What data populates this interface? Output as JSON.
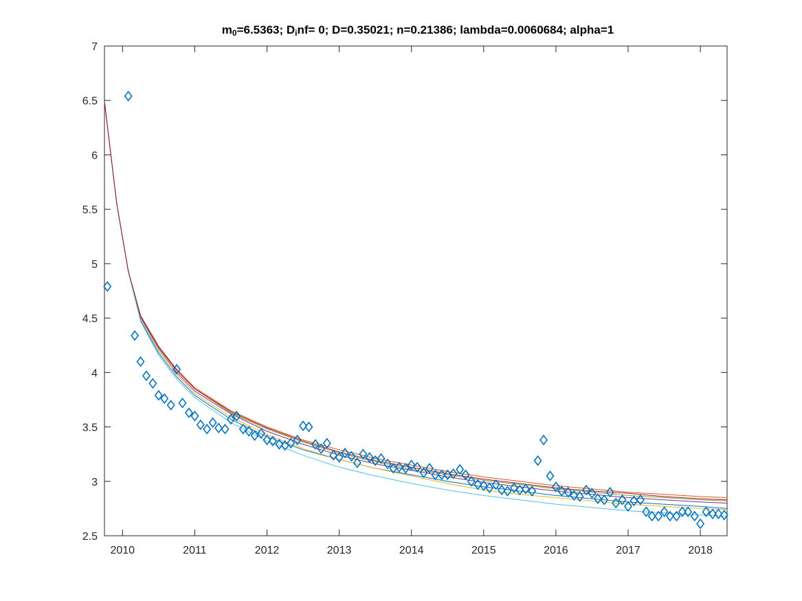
{
  "chart_data": {
    "type": "scatter",
    "title": {
      "parts": [
        {
          "text": "m",
          "sub": false
        },
        {
          "text": "0",
          "sub": true
        },
        {
          "text": "=6.5363; D",
          "sub": false
        },
        {
          "text": "i",
          "sub": true
        },
        {
          "text": "nf= 0; D=0.35021; n=0.21386; lambda=0.0060684; alpha=1",
          "sub": false
        }
      ]
    },
    "xlabel": "",
    "ylabel": "",
    "xlim": [
      2009.75,
      2018.37
    ],
    "ylim": [
      2.5,
      7
    ],
    "grid": false,
    "legend": "none",
    "x_ticks": [
      2010,
      2011,
      2012,
      2013,
      2014,
      2015,
      2016,
      2017,
      2018
    ],
    "x_tick_labels": [
      "2010",
      "2011",
      "2012",
      "2013",
      "2014",
      "2015",
      "2016",
      "2017",
      "2018"
    ],
    "y_ticks": [
      2.5,
      3,
      3.5,
      4,
      4.5,
      5,
      5.5,
      6,
      6.5,
      7
    ],
    "y_tick_labels": [
      "2.5",
      "3",
      "3.5",
      "4",
      "4.5",
      "5",
      "5.5",
      "6",
      "6.5",
      "7"
    ],
    "observed": {
      "marker": "diamond",
      "color": "#0072bd",
      "x": [
        2009.79,
        2010.08,
        2010.17,
        2010.25,
        2010.33,
        2010.42,
        2010.5,
        2010.58,
        2010.67,
        2010.75,
        2010.83,
        2010.92,
        2011.0,
        2011.08,
        2011.17,
        2011.25,
        2011.33,
        2011.42,
        2011.5,
        2011.58,
        2011.67,
        2011.75,
        2011.83,
        2011.92,
        2012.0,
        2012.08,
        2012.17,
        2012.25,
        2012.33,
        2012.42,
        2012.5,
        2012.58,
        2012.67,
        2012.75,
        2012.83,
        2012.92,
        2013.0,
        2013.08,
        2013.17,
        2013.25,
        2013.33,
        2013.42,
        2013.5,
        2013.58,
        2013.67,
        2013.75,
        2013.83,
        2013.92,
        2014.0,
        2014.08,
        2014.17,
        2014.25,
        2014.33,
        2014.42,
        2014.5,
        2014.58,
        2014.67,
        2014.75,
        2014.83,
        2014.92,
        2015.0,
        2015.08,
        2015.17,
        2015.25,
        2015.33,
        2015.42,
        2015.5,
        2015.58,
        2015.67,
        2015.75,
        2015.83,
        2015.92,
        2016.0,
        2016.08,
        2016.17,
        2016.25,
        2016.33,
        2016.42,
        2016.5,
        2016.58,
        2016.67,
        2016.75,
        2016.83,
        2016.92,
        2017.0,
        2017.08,
        2017.17,
        2017.25,
        2017.33,
        2017.42,
        2017.5,
        2017.58,
        2017.67,
        2017.75,
        2017.83,
        2017.92,
        2018.0,
        2018.08,
        2018.17,
        2018.25,
        2018.33
      ],
      "y": [
        4.79,
        6.54,
        4.34,
        4.1,
        3.97,
        3.9,
        3.79,
        3.76,
        3.7,
        4.03,
        3.72,
        3.63,
        3.6,
        3.52,
        3.48,
        3.54,
        3.49,
        3.48,
        3.57,
        3.6,
        3.48,
        3.46,
        3.42,
        3.44,
        3.38,
        3.37,
        3.34,
        3.33,
        3.35,
        3.38,
        3.51,
        3.5,
        3.34,
        3.3,
        3.35,
        3.24,
        3.22,
        3.26,
        3.23,
        3.17,
        3.25,
        3.22,
        3.19,
        3.21,
        3.16,
        3.12,
        3.13,
        3.12,
        3.15,
        3.13,
        3.08,
        3.12,
        3.06,
        3.06,
        3.06,
        3.07,
        3.11,
        3.06,
        3.0,
        2.97,
        2.96,
        2.94,
        2.97,
        2.92,
        2.91,
        2.94,
        2.92,
        2.93,
        2.91,
        3.19,
        3.38,
        3.05,
        2.95,
        2.91,
        2.9,
        2.87,
        2.86,
        2.92,
        2.89,
        2.84,
        2.83,
        2.9,
        2.8,
        2.83,
        2.77,
        2.82,
        2.83,
        2.72,
        2.68,
        2.68,
        2.72,
        2.68,
        2.68,
        2.72,
        2.72,
        2.68,
        2.61,
        2.72,
        2.7,
        2.7,
        2.69
      ]
    },
    "series": [
      {
        "color": "#0072bd",
        "x": [
          2009.75,
          2009.92,
          2010.08,
          2010.25,
          2010.5,
          2010.75,
          2011.0,
          2011.5,
          2012.0,
          2012.5,
          2013.0,
          2013.5,
          2014.0,
          2014.5,
          2015.0,
          2015.5,
          2016.0,
          2016.5,
          2017.0,
          2017.5,
          2018.0,
          2018.37
        ],
        "y": [
          6.49,
          5.55,
          4.93,
          4.48,
          4.18,
          3.96,
          3.79,
          3.57,
          3.41,
          3.29,
          3.2,
          3.12,
          3.06,
          3.0,
          2.95,
          2.91,
          2.87,
          2.84,
          2.81,
          2.79,
          2.77,
          2.75
        ]
      },
      {
        "color": "#d95319",
        "x": [
          2009.75,
          2009.92,
          2010.08,
          2010.25,
          2010.5,
          2010.75,
          2011.0,
          2011.5,
          2012.0,
          2012.5,
          2013.0,
          2013.5,
          2014.0,
          2014.5,
          2015.0,
          2015.5,
          2016.0,
          2016.5,
          2017.0,
          2017.5,
          2018.0,
          2018.37
        ],
        "y": [
          6.49,
          5.55,
          4.93,
          4.52,
          4.24,
          4.03,
          3.86,
          3.65,
          3.5,
          3.38,
          3.29,
          3.21,
          3.15,
          3.09,
          3.04,
          3.0,
          2.96,
          2.93,
          2.9,
          2.88,
          2.86,
          2.85
        ]
      },
      {
        "color": "#edb120",
        "x": [
          2009.75,
          2009.92,
          2010.08,
          2010.25,
          2010.5,
          2010.75,
          2011.0,
          2011.5,
          2012.0,
          2012.5,
          2013.0,
          2013.5,
          2014.0,
          2014.5,
          2015.0,
          2015.5,
          2016.0,
          2016.5,
          2017.0,
          2017.5,
          2018.0,
          2018.37
        ],
        "y": [
          6.49,
          5.55,
          4.93,
          4.5,
          4.2,
          3.98,
          3.81,
          3.59,
          3.43,
          3.3,
          3.2,
          3.12,
          3.05,
          2.98,
          2.92,
          2.88,
          2.85,
          2.82,
          2.79,
          2.77,
          2.75,
          2.74
        ]
      },
      {
        "color": "#7e2f8e",
        "x": [
          2009.75,
          2009.92,
          2010.08,
          2010.25,
          2010.5,
          2010.75,
          2011.0,
          2011.5,
          2012.0,
          2012.5,
          2013.0,
          2013.5,
          2014.0,
          2014.5,
          2015.0,
          2015.5,
          2016.0,
          2016.5,
          2017.0,
          2017.5,
          2018.0,
          2018.37
        ],
        "y": [
          6.49,
          5.55,
          4.93,
          4.51,
          4.22,
          4.0,
          3.83,
          3.62,
          3.46,
          3.34,
          3.24,
          3.16,
          3.1,
          3.04,
          2.99,
          2.95,
          2.91,
          2.88,
          2.85,
          2.83,
          2.81,
          2.8
        ]
      },
      {
        "color": "#77ac30",
        "x": [
          2009.75,
          2009.92,
          2010.08,
          2010.25,
          2010.5,
          2010.75,
          2011.0,
          2011.5,
          2012.0,
          2012.5,
          2013.0,
          2013.5,
          2014.0,
          2014.5,
          2015.0,
          2015.5,
          2016.0,
          2016.5,
          2017.0,
          2017.5,
          2018.0,
          2018.37
        ],
        "y": [
          6.49,
          5.55,
          4.93,
          4.52,
          4.23,
          4.02,
          3.85,
          3.63,
          3.48,
          3.36,
          3.26,
          3.18,
          3.11,
          3.06,
          3.01,
          2.97,
          2.93,
          2.9,
          2.87,
          2.85,
          2.83,
          2.82
        ]
      },
      {
        "color": "#4dbeee",
        "x": [
          2009.75,
          2009.92,
          2010.08,
          2010.25,
          2010.5,
          2010.75,
          2011.0,
          2011.5,
          2012.0,
          2012.5,
          2013.0,
          2013.5,
          2014.0,
          2014.5,
          2015.0,
          2015.5,
          2016.0,
          2016.5,
          2017.0,
          2017.5,
          2018.0,
          2018.37
        ],
        "y": [
          6.49,
          5.55,
          4.93,
          4.47,
          4.16,
          3.94,
          3.77,
          3.54,
          3.37,
          3.24,
          3.13,
          3.05,
          2.98,
          2.92,
          2.87,
          2.83,
          2.79,
          2.76,
          2.73,
          2.71,
          2.69,
          2.68
        ]
      },
      {
        "color": "#a2142f",
        "x": [
          2009.75,
          2009.92,
          2010.08,
          2010.25,
          2010.5,
          2010.75,
          2011.0,
          2011.5,
          2012.0,
          2012.5,
          2013.0,
          2013.5,
          2014.0,
          2014.5,
          2015.0,
          2015.5,
          2016.0,
          2016.5,
          2017.0,
          2017.5,
          2018.0,
          2018.37
        ],
        "y": [
          6.49,
          5.55,
          4.93,
          4.52,
          4.24,
          4.02,
          3.85,
          3.64,
          3.49,
          3.37,
          3.27,
          3.19,
          3.13,
          3.07,
          3.02,
          2.98,
          2.94,
          2.91,
          2.89,
          2.86,
          2.84,
          2.83
        ]
      }
    ]
  }
}
